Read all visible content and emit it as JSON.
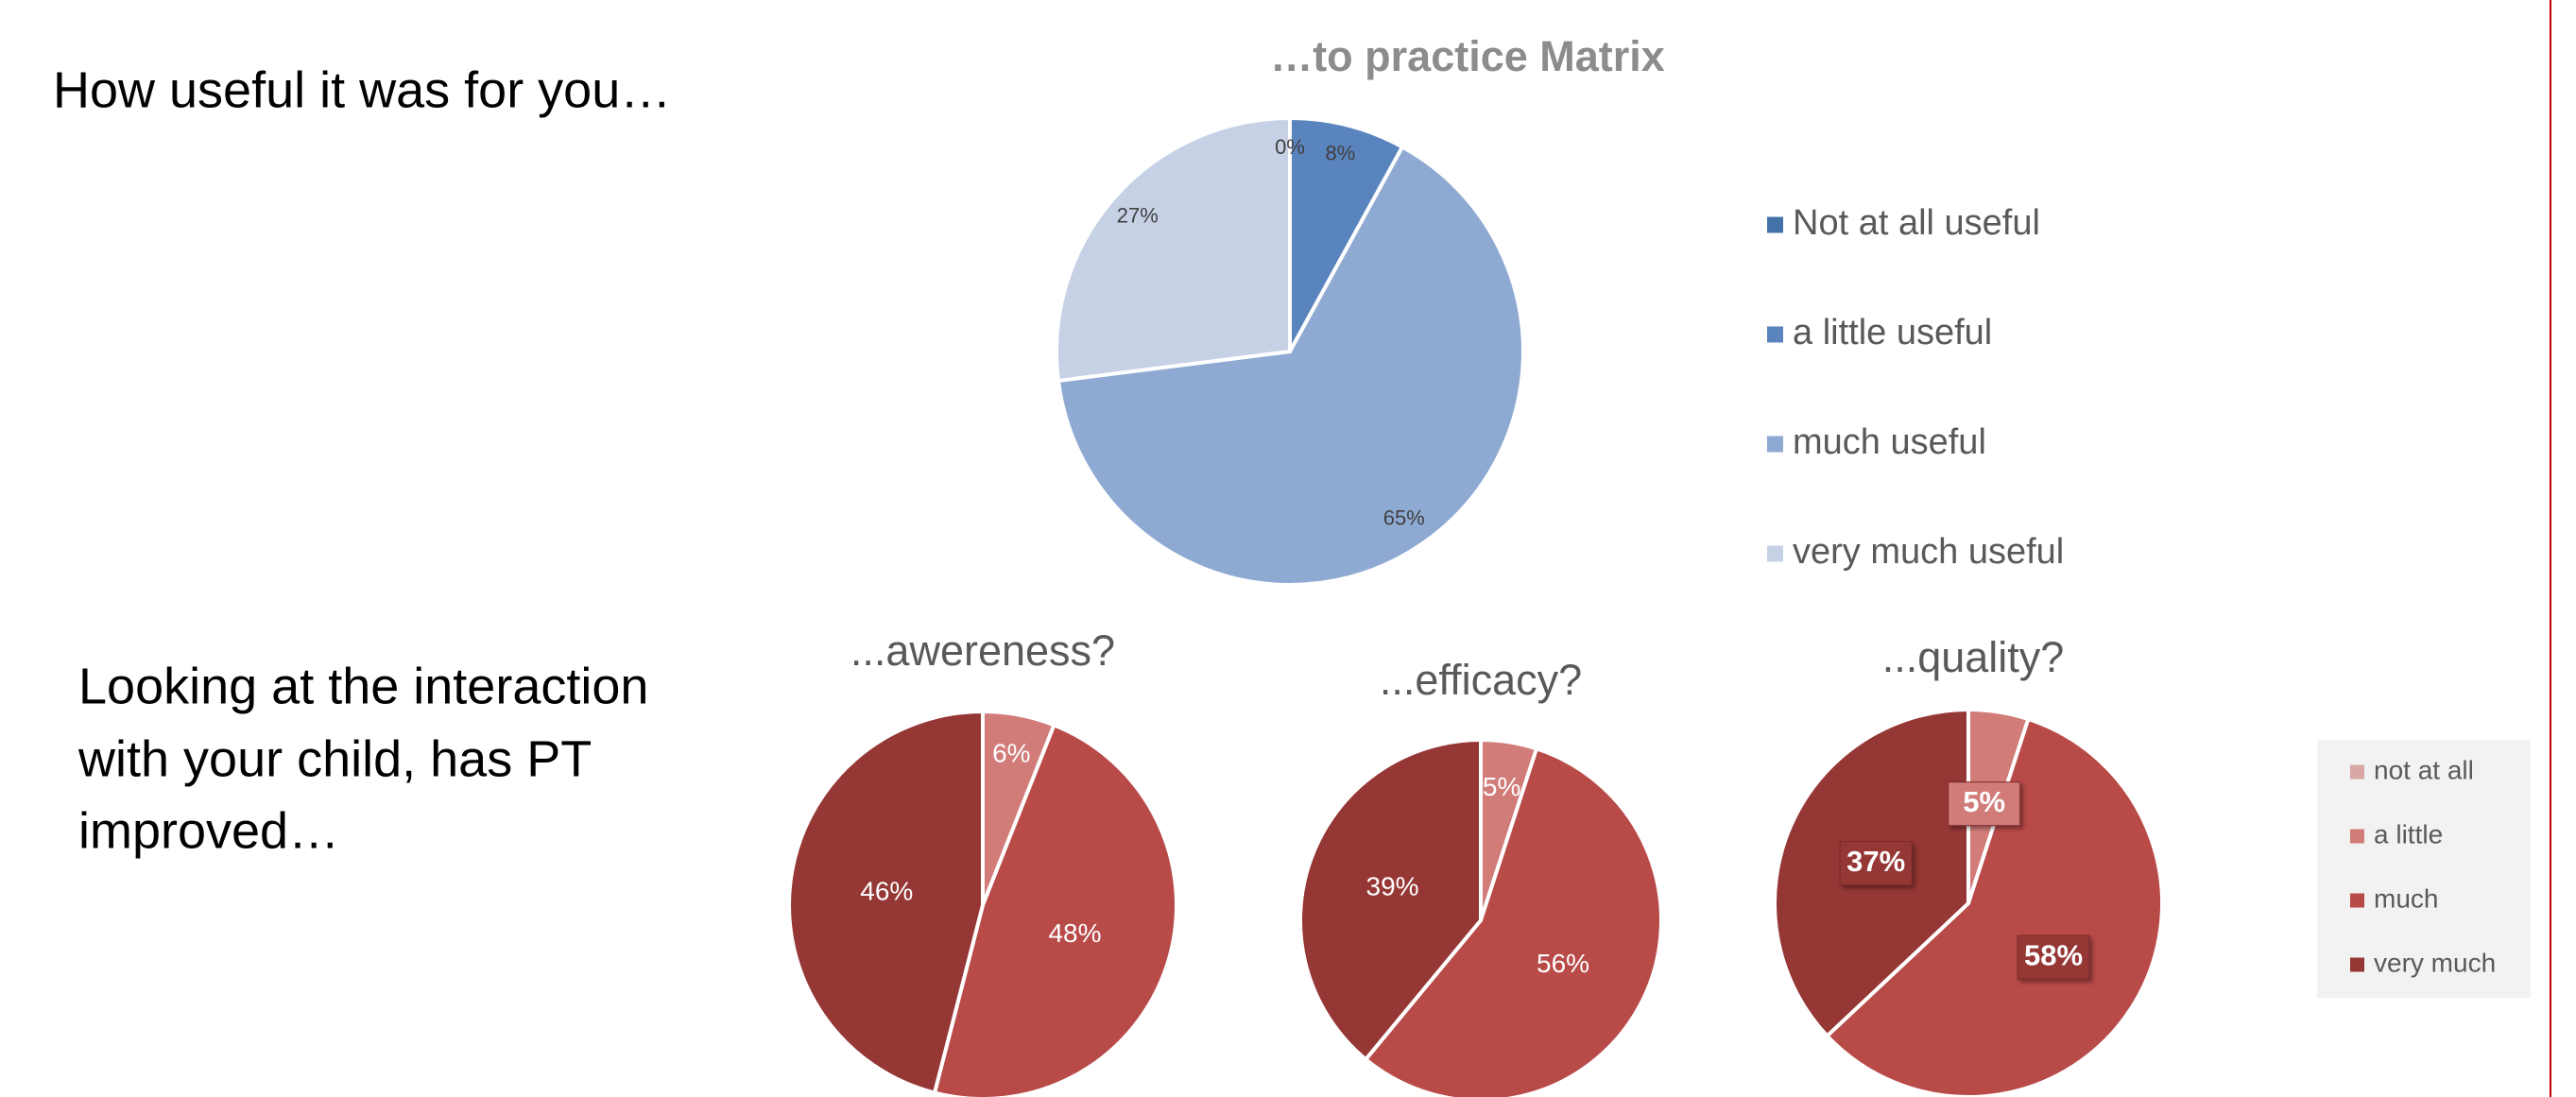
{
  "slide": {
    "heading": "How useful it was for you…",
    "question": [
      "Looking at the interaction",
      "with your child, has PT",
      "improved…"
    ]
  },
  "chart_data": [
    {
      "type": "pie",
      "title": "…to practice Matrix",
      "categories": [
        "Not at all useful",
        "a little useful",
        "much useful",
        "very much useful"
      ],
      "values": [
        0,
        8,
        65,
        27
      ],
      "value_labels": [
        "0%",
        "8%",
        "65%",
        "27%"
      ],
      "colors": [
        "#4472a8",
        "#5a84bd",
        "#8eaad3",
        "#c6d1e6"
      ],
      "legend": true
    },
    {
      "type": "pie",
      "title": "...awereness?",
      "categories": [
        "not at all",
        "a little",
        "much",
        "very much"
      ],
      "values": [
        0,
        6,
        48,
        46
      ],
      "value_labels": [
        null,
        "6%",
        "48%",
        "46%"
      ],
      "colors": [
        "#d9a8a6",
        "#d17c79",
        "#b84a48",
        "#953735"
      ],
      "legend": false
    },
    {
      "type": "pie",
      "title": "...efficacy?",
      "categories": [
        "not at all",
        "a little",
        "much",
        "very much"
      ],
      "values": [
        0,
        5,
        56,
        39
      ],
      "value_labels": [
        null,
        "5%",
        "56%",
        "39%"
      ],
      "colors": [
        "#d9a8a6",
        "#d17c79",
        "#b84a48",
        "#953735"
      ],
      "legend": false
    },
    {
      "type": "pie",
      "title": "...quality?",
      "categories": [
        "not at all",
        "a little",
        "much",
        "very much"
      ],
      "values": [
        0,
        5,
        58,
        37
      ],
      "value_labels": [
        null,
        "5%",
        "58%",
        "37%"
      ],
      "colors": [
        "#d9a8a6",
        "#d17c79",
        "#b84a48",
        "#953735"
      ],
      "legend": true
    }
  ]
}
